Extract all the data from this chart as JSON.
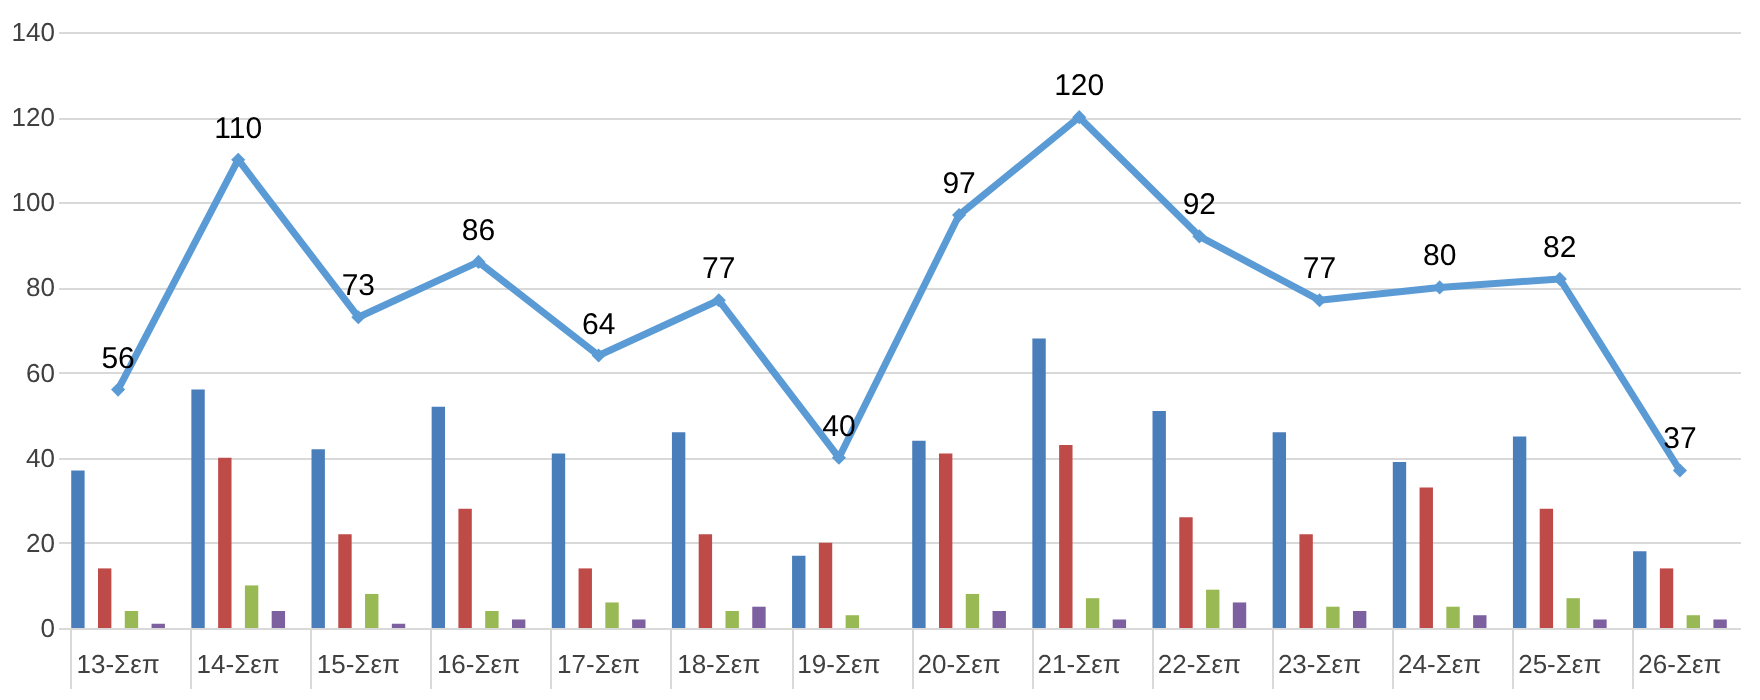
{
  "chart_data": {
    "type": "bar",
    "categories": [
      "13-Σεπ",
      "14-Σεπ",
      "15-Σεπ",
      "16-Σεπ",
      "17-Σεπ",
      "18-Σεπ",
      "19-Σεπ",
      "20-Σεπ",
      "21-Σεπ",
      "22-Σεπ",
      "23-Σεπ",
      "24-Σεπ",
      "25-Σεπ",
      "26-Σεπ"
    ],
    "series": [
      {
        "color": "#4a7ebb",
        "values": [
          37,
          56,
          42,
          52,
          41,
          46,
          17,
          44,
          68,
          51,
          46,
          39,
          45,
          18
        ]
      },
      {
        "color": "#be4b48",
        "values": [
          14,
          40,
          22,
          28,
          14,
          22,
          20,
          41,
          43,
          26,
          22,
          33,
          28,
          14
        ]
      },
      {
        "color": "#98b954",
        "values": [
          4,
          10,
          8,
          4,
          6,
          4,
          3,
          8,
          7,
          9,
          5,
          5,
          7,
          3
        ]
      },
      {
        "color": "#7d60a0",
        "values": [
          1,
          4,
          1,
          2,
          2,
          5,
          0,
          4,
          2,
          6,
          4,
          3,
          2,
          2
        ]
      },
      {
        "type": "line",
        "color": "#5b9bd5",
        "marker": "diamond",
        "data_labels": true,
        "values": [
          56,
          110,
          73,
          86,
          64,
          77,
          40,
          97,
          120,
          92,
          77,
          80,
          82,
          37
        ]
      }
    ],
    "ylim": [
      0,
      140
    ],
    "yticks": [
      0,
      20,
      40,
      60,
      80,
      100,
      120,
      140
    ],
    "grid": "y",
    "legend": false
  }
}
